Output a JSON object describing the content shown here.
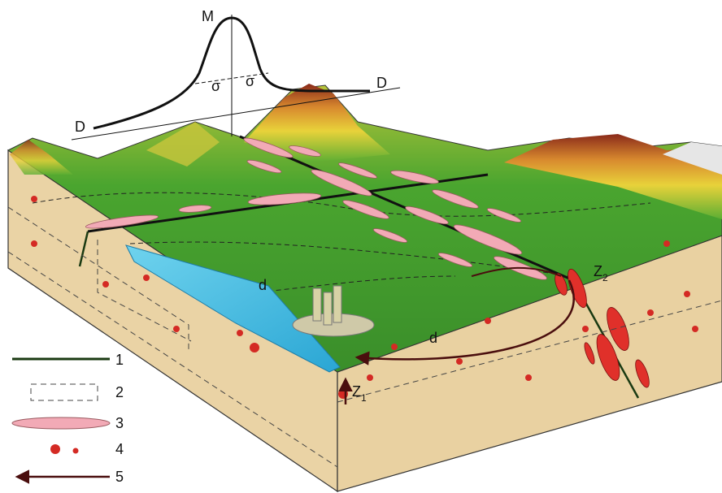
{
  "diagram": {
    "curve_labels": {
      "peak": "M",
      "left": "D",
      "right": "D",
      "sigma_left": "σ",
      "sigma_right": "σ"
    },
    "labels": {
      "d_upper": "d",
      "d_lower": "d",
      "z1": {
        "base": "Z",
        "sub": "1"
      },
      "z2": {
        "base": "Z",
        "sub": "2"
      }
    },
    "legend": [
      {
        "label": "1"
      },
      {
        "label": "2"
      },
      {
        "label": "3"
      },
      {
        "label": "4"
      },
      {
        "label": "5"
      }
    ]
  }
}
